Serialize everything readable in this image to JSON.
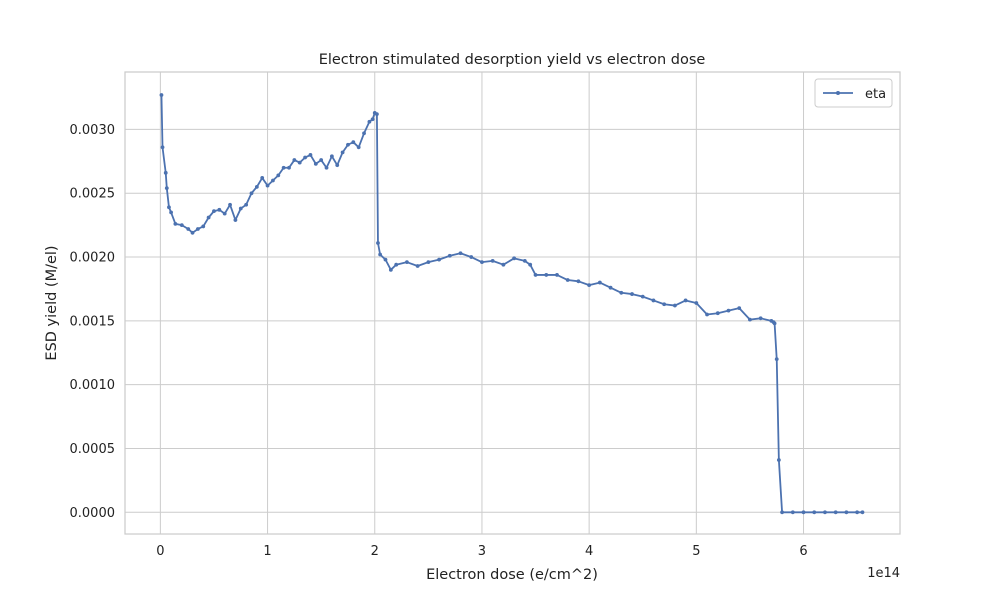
{
  "chart_data": {
    "type": "line",
    "title": "Electron stimulated desorption yield vs electron dose",
    "xlabel": "Electron dose (e/cm^2)",
    "ylabel": "ESD yield (M/el)",
    "x_offset_label": "1e14",
    "x_scale": 100000000000000.0,
    "xlim": [
      -33000000000000.0,
      690000000000000.0
    ],
    "ylim": [
      -0.00017,
      0.00345
    ],
    "x_ticks": [
      0,
      100000000000000.0,
      200000000000000.0,
      300000000000000.0,
      400000000000000.0,
      500000000000000.0,
      600000000000000.0
    ],
    "x_tick_labels": [
      "0",
      "1",
      "2",
      "3",
      "4",
      "5",
      "6"
    ],
    "y_ticks": [
      0,
      0.0005,
      0.001,
      0.0015,
      0.002,
      0.0025,
      0.003
    ],
    "y_tick_labels": [
      "0.0000",
      "0.0005",
      "0.0010",
      "0.0015",
      "0.0020",
      "0.0025",
      "0.0030"
    ],
    "grid": true,
    "legend_position": "upper right",
    "series_color": "#4c72b0",
    "series": [
      {
        "name": "eta",
        "x": [
          1000000000000.0,
          2000000000000.0,
          5000000000000.0,
          6000000000000.0,
          8000000000000.0,
          10000000000000.0,
          14000000000000.0,
          20000000000000.0,
          26000000000000.0,
          30000000000000.0,
          35000000000000.0,
          40000000000000.0,
          45000000000000.0,
          50000000000000.0,
          55000000000000.0,
          60000000000000.0,
          65000000000000.0,
          70000000000000.0,
          75000000000000.0,
          80000000000000.0,
          85000000000000.0,
          90000000000000.0,
          95000000000000.0,
          100000000000000.0,
          105000000000000.0,
          110000000000000.0,
          115000000000000.0,
          120000000000000.0,
          125000000000000.0,
          130000000000000.0,
          135000000000000.0,
          140000000000000.0,
          145000000000000.0,
          150000000000000.0,
          155000000000000.0,
          160000000000000.0,
          165000000000000.0,
          170000000000000.0,
          175000000000000.0,
          180000000000000.0,
          185000000000000.0,
          190000000000000.0,
          195000000000000.0,
          198000000000000.0,
          200000000000000.0,
          202000000000000.0,
          203000000000000.0,
          205000000000000.0,
          210000000000000.0,
          215000000000000.0,
          220000000000000.0,
          230000000000000.0,
          240000000000000.0,
          250000000000000.0,
          260000000000000.0,
          270000000000000.0,
          280000000000000.0,
          290000000000000.0,
          300000000000000.0,
          310000000000000.0,
          320000000000000.0,
          330000000000000.0,
          340000000000000.0,
          345000000000000.0,
          350000000000000.0,
          360000000000000.0,
          370000000000000.0,
          380000000000000.0,
          390000000000000.0,
          400000000000000.0,
          410000000000000.0,
          420000000000000.0,
          430000000000000.0,
          440000000000000.0,
          450000000000000.0,
          460000000000000.0,
          470000000000000.0,
          480000000000000.0,
          490000000000000.0,
          500000000000000.0,
          510000000000000.0,
          520000000000000.0,
          530000000000000.0,
          540000000000000.0,
          550000000000000.0,
          560000000000000.0,
          570000000000000.0,
          572000000000000.0,
          573000000000000.0,
          575000000000000.0,
          577000000000000.0,
          580000000000000.0,
          590000000000000.0,
          600000000000000.0,
          610000000000000.0,
          620000000000000.0,
          630000000000000.0,
          640000000000000.0,
          650000000000000.0,
          655000000000000.0
        ],
        "y": [
          0.00327,
          0.00286,
          0.00266,
          0.00254,
          0.00239,
          0.00235,
          0.00226,
          0.00225,
          0.00222,
          0.00219,
          0.00222,
          0.00224,
          0.00231,
          0.00236,
          0.00237,
          0.00234,
          0.00241,
          0.00229,
          0.00238,
          0.00241,
          0.0025,
          0.00255,
          0.00262,
          0.00256,
          0.0026,
          0.00264,
          0.0027,
          0.0027,
          0.00276,
          0.00274,
          0.00278,
          0.0028,
          0.00273,
          0.00276,
          0.0027,
          0.00279,
          0.00272,
          0.00282,
          0.00288,
          0.0029,
          0.00286,
          0.00297,
          0.00306,
          0.00308,
          0.00313,
          0.00312,
          0.00211,
          0.00202,
          0.00198,
          0.0019,
          0.00194,
          0.00196,
          0.00193,
          0.00196,
          0.00198,
          0.00201,
          0.00203,
          0.002,
          0.00196,
          0.00197,
          0.00194,
          0.00199,
          0.00197,
          0.00194,
          0.00186,
          0.00186,
          0.00186,
          0.00182,
          0.00181,
          0.00178,
          0.0018,
          0.00176,
          0.00172,
          0.00171,
          0.00169,
          0.00166,
          0.00163,
          0.00162,
          0.00166,
          0.00164,
          0.00155,
          0.00156,
          0.00158,
          0.0016,
          0.00151,
          0.00152,
          0.0015,
          0.00149,
          0.00148,
          0.0012,
          0.00041,
          0.0,
          0.0,
          0.0,
          0.0,
          0.0,
          0.0,
          0.0,
          0.0,
          0.0
        ]
      }
    ]
  }
}
